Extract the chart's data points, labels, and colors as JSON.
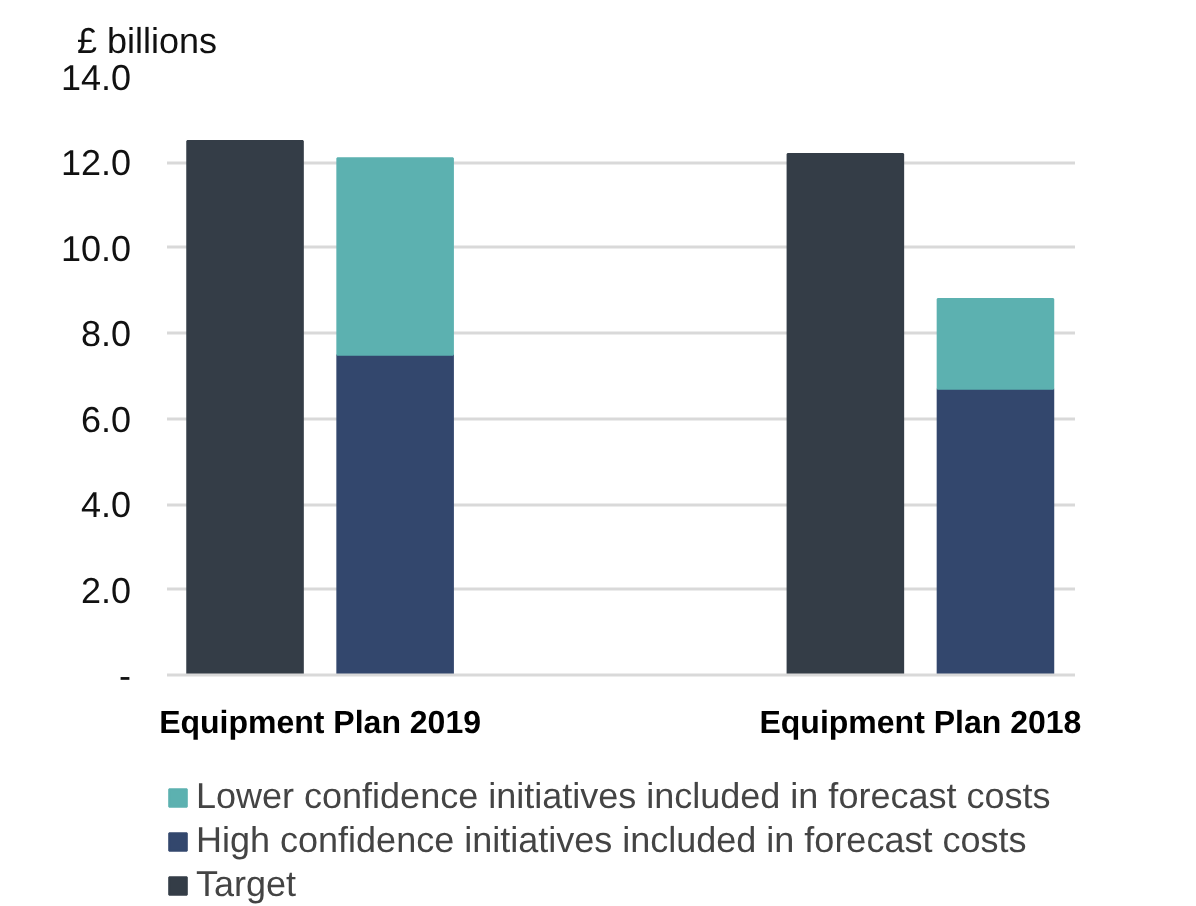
{
  "chart_data": {
    "type": "bar",
    "ylabel": "£ billions",
    "categories": [
      null,
      null,
      null,
      null,
      null,
      null
    ],
    "stacked": true,
    "series": [
      {
        "name": "Target",
        "color": "#343d47",
        "values": [
          12.5,
          null,
          null,
          null,
          12.2,
          null
        ]
      },
      {
        "name": "High confidence initiatives included in forecast costs",
        "color": "#33476d",
        "values": [
          null,
          7.5,
          null,
          null,
          null,
          6.7
        ]
      },
      {
        "name": "Lower confidence initiatives included in forecast costs",
        "color": "#5cb1b0",
        "values": [
          null,
          4.6,
          null,
          null,
          null,
          2.1
        ]
      }
    ],
    "annotations": [
      "Equipment Plan 2019",
      "Equipment Plan 2018"
    ],
    "ylim": [
      0,
      14
    ],
    "yticks": [
      {
        "value": 0,
        "label": "-"
      },
      {
        "value": 2,
        "label": "2.0"
      },
      {
        "value": 4,
        "label": "4.0"
      },
      {
        "value": 6,
        "label": "6.0"
      },
      {
        "value": 8,
        "label": "8.0"
      },
      {
        "value": 10,
        "label": "10.0"
      },
      {
        "value": 12,
        "label": "12.0"
      },
      {
        "value": 14,
        "label": "14.0"
      }
    ],
    "grid": "y",
    "legend": "bottom"
  }
}
